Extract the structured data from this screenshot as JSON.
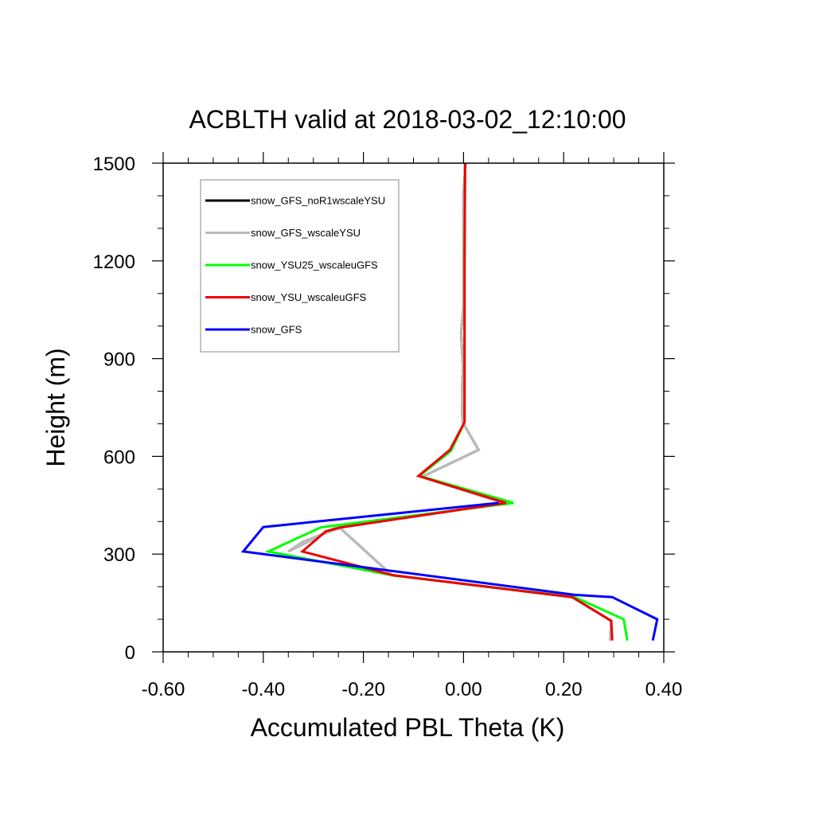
{
  "chart_data": {
    "type": "line",
    "title": "ACBLTH valid at 2018-03-02_12:10:00",
    "xlabel": "Accumulated PBL Theta (K)",
    "ylabel": "Height (m)",
    "xlim": [
      -0.6,
      0.4
    ],
    "ylim": [
      0,
      1500
    ],
    "xticks": [
      "-0.60",
      "-0.40",
      "-0.20",
      "0.00",
      "0.20",
      "0.40"
    ],
    "yticks": [
      "0",
      "300",
      "600",
      "900",
      "1200",
      "1500"
    ],
    "xtick_values": [
      -0.6,
      -0.4,
      -0.2,
      0.0,
      0.2,
      0.4
    ],
    "ytick_values": [
      0,
      300,
      600,
      900,
      1200,
      1500
    ],
    "legend_placement": "top-left",
    "grid": false,
    "series": [
      {
        "name": "snow_GFS_noR1wscaleYSU",
        "color": "#000000",
        "points": [
          [
            0.293,
            35
          ],
          [
            0.295,
            95
          ],
          [
            0.217,
            168
          ],
          [
            -0.143,
            235
          ],
          [
            -0.25,
            385
          ],
          [
            -0.35,
            308
          ],
          [
            -0.32,
            338
          ],
          [
            -0.275,
            365
          ],
          [
            -0.245,
            382
          ],
          [
            0.08,
            457
          ],
          [
            -0.083,
            537
          ],
          [
            0.03,
            620
          ],
          [
            -0.002,
            705
          ],
          [
            -0.003,
            760
          ],
          [
            -0.003,
            810
          ],
          [
            -0.001,
            870
          ],
          [
            -0.005,
            980
          ],
          [
            0.0,
            1060
          ],
          [
            0.0,
            1200
          ],
          [
            0.0,
            1400
          ],
          [
            0.004,
            1500
          ]
        ]
      },
      {
        "name": "snow_GFS_wscaleYSU",
        "color": "#bbbbbb",
        "points": [
          [
            0.293,
            35
          ],
          [
            0.295,
            95
          ],
          [
            0.217,
            168
          ],
          [
            -0.143,
            235
          ],
          [
            -0.25,
            385
          ],
          [
            -0.35,
            308
          ],
          [
            -0.32,
            338
          ],
          [
            -0.275,
            365
          ],
          [
            -0.245,
            382
          ],
          [
            0.08,
            457
          ],
          [
            -0.083,
            537
          ],
          [
            0.03,
            620
          ],
          [
            -0.002,
            705
          ],
          [
            -0.003,
            760
          ],
          [
            -0.003,
            810
          ],
          [
            -0.001,
            870
          ],
          [
            -0.005,
            980
          ],
          [
            0.0,
            1060
          ],
          [
            0.0,
            1200
          ],
          [
            0.0,
            1400
          ],
          [
            0.004,
            1500
          ]
        ]
      },
      {
        "name": "snow_YSU25_wscaleuGFS",
        "color": "#00ff00",
        "points": [
          [
            0.327,
            35
          ],
          [
            0.32,
            100
          ],
          [
            0.222,
            168
          ],
          [
            -0.143,
            235
          ],
          [
            -0.39,
            308
          ],
          [
            -0.285,
            382
          ],
          [
            0.1,
            457
          ],
          [
            -0.088,
            540
          ],
          [
            -0.025,
            617
          ],
          [
            0.002,
            705
          ],
          [
            0.002,
            800
          ],
          [
            0.002,
            1000
          ],
          [
            0.002,
            1200
          ],
          [
            0.003,
            1500
          ]
        ]
      },
      {
        "name": "snow_YSU_wscaleuGFS",
        "color": "#ee0000",
        "points": [
          [
            0.297,
            35
          ],
          [
            0.295,
            95
          ],
          [
            0.217,
            168
          ],
          [
            -0.14,
            235
          ],
          [
            -0.322,
            308
          ],
          [
            -0.275,
            370
          ],
          [
            -0.245,
            382
          ],
          [
            0.085,
            457
          ],
          [
            -0.09,
            540
          ],
          [
            -0.027,
            620
          ],
          [
            0.002,
            705
          ],
          [
            0.002,
            800
          ],
          [
            0.002,
            1000
          ],
          [
            0.002,
            1200
          ],
          [
            0.003,
            1500
          ]
        ]
      },
      {
        "name": "snow_GFS",
        "color": "#0000ff",
        "points": [
          [
            0.378,
            35
          ],
          [
            0.387,
            100
          ],
          [
            0.297,
            168
          ],
          [
            0.222,
            175
          ],
          [
            -0.44,
            308
          ],
          [
            -0.4,
            383
          ],
          [
            0.07,
            457
          ]
        ]
      }
    ]
  }
}
